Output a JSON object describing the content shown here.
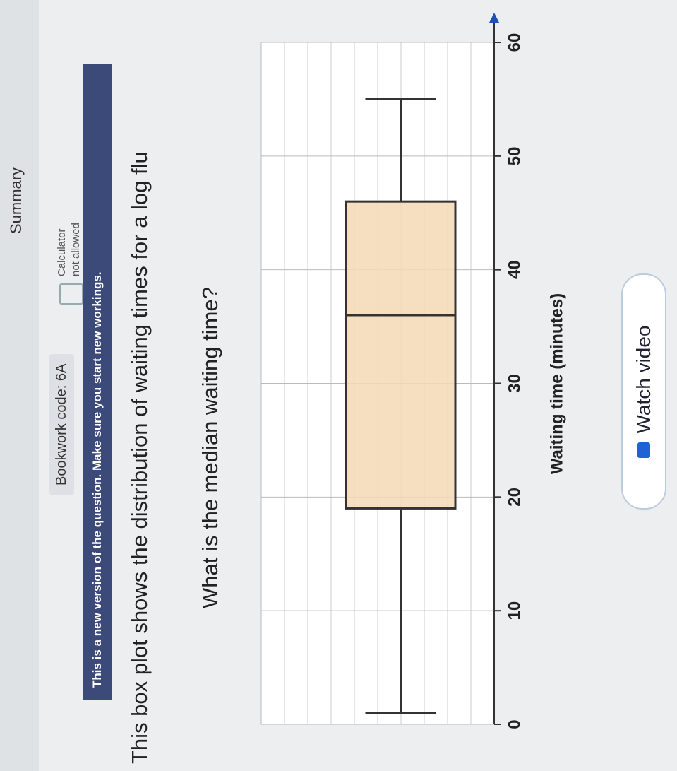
{
  "header": {
    "tab": "Summary",
    "bookwork_code": "Bookwork code: 6A",
    "calculator": "Calculator",
    "calculator_status": "not allowed"
  },
  "notice": "This is a new version of the question. Make sure you start new workings.",
  "question": "This box plot shows the distribution of waiting times for a log flu",
  "prompt": "What is the median waiting time?",
  "chart_data": {
    "type": "box",
    "x_label": "Waiting time (minutes)",
    "min": 1,
    "q1": 19,
    "median": 36,
    "q3": 46,
    "max": 55,
    "color": "#f5d9b5",
    "xlim": [
      0,
      60
    ],
    "xticks": [
      0,
      10,
      20,
      30,
      40,
      50,
      60
    ],
    "grid": true
  },
  "button": "Watch video"
}
